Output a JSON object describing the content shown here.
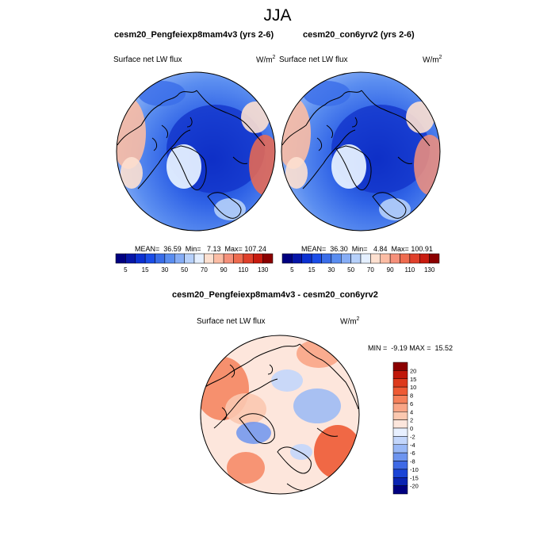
{
  "figure": {
    "title": "JJA"
  },
  "panels": [
    {
      "title": "cesm20_Pengfeiexp8mam4v3 (yrs 2-6)",
      "variable": "Surface net LW flux",
      "units_base": "W/m",
      "units_exp": "2",
      "stats": "MEAN=  36.59  Min=   7.13  Max= 107.24"
    },
    {
      "title": "cesm20_con6yrv2 (yrs 2-6)",
      "variable": "Surface net LW flux",
      "units_base": "W/m",
      "units_exp": "2",
      "stats": "MEAN=  36.30  Min=   4.84  Max= 100.91"
    }
  ],
  "diff_panel": {
    "title": "cesm20_Pengfeiexp8mam4v3 - cesm20_con6yrv2",
    "variable": "Surface net LW flux",
    "units_base": "W/m",
    "units_exp": "2",
    "stats": "MIN =  -9.19 MAX =  15.52"
  },
  "colorbar_main": {
    "labels": [
      "5",
      "15",
      "30",
      "50",
      "70",
      "90",
      "110",
      "130"
    ],
    "colors": [
      "#000080",
      "#0616a8",
      "#0c31d2",
      "#1b4de8",
      "#3a6de8",
      "#5a8df0",
      "#86adf5",
      "#b6d0fa",
      "#e4efff",
      "#fde0d0",
      "#fbbca4",
      "#f5907a",
      "#ee6b4f",
      "#e0402b",
      "#c81b0f",
      "#8b0000"
    ]
  },
  "colorbar_diff": {
    "labels": [
      "20",
      "15",
      "10",
      "8",
      "6",
      "4",
      "2",
      "0",
      "-2",
      "-4",
      "-6",
      "-8",
      "-10",
      "-15",
      "-20"
    ],
    "colors": [
      "#8b0000",
      "#c0180a",
      "#dd3a1c",
      "#ee5a34",
      "#f5805a",
      "#f9a586",
      "#fbc8b0",
      "#fde6dc",
      "#e8f0ff",
      "#c3d6fb",
      "#99b8f6",
      "#6d94ef",
      "#3f6ae6",
      "#1a44d6",
      "#0a24b2",
      "#000080"
    ]
  }
}
